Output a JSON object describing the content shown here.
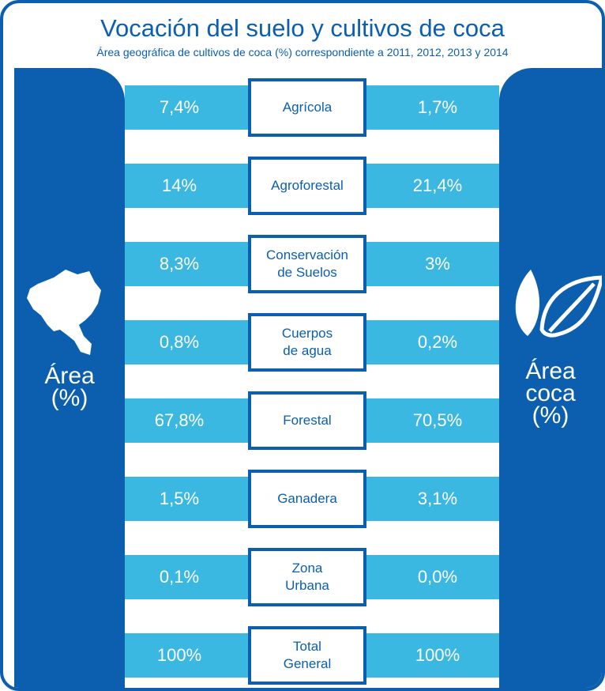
{
  "title": "Vocación del suelo y cultivos de coca",
  "subtitle": "Área geográfica de cultivos de coca (%) correspondiente a 2011, 2012, 2013 y 2014",
  "left_label": [
    "Área",
    "(%)"
  ],
  "right_label": [
    "Área",
    "coca",
    "(%)"
  ],
  "rows": [
    {
      "label": [
        "Agrícola"
      ],
      "area": "7,4%",
      "coca": "1,7%"
    },
    {
      "label": [
        "Agroforestal"
      ],
      "area": "14%",
      "coca": "21,4%"
    },
    {
      "label": [
        "Conservación",
        "de Suelos"
      ],
      "area": "8,3%",
      "coca": "3%"
    },
    {
      "label": [
        "Cuerpos",
        "de agua"
      ],
      "area": "0,8%",
      "coca": "0,2%"
    },
    {
      "label": [
        "Forestal"
      ],
      "area": "67,8%",
      "coca": "70,5%"
    },
    {
      "label": [
        "Ganadera"
      ],
      "area": "1,5%",
      "coca": "3,1%"
    },
    {
      "label": [
        "Zona",
        "Urbana"
      ],
      "area": "0,1%",
      "coca": "0,0%"
    },
    {
      "label": [
        "Total",
        "General"
      ],
      "area": "100%",
      "coca": "100%"
    }
  ]
}
